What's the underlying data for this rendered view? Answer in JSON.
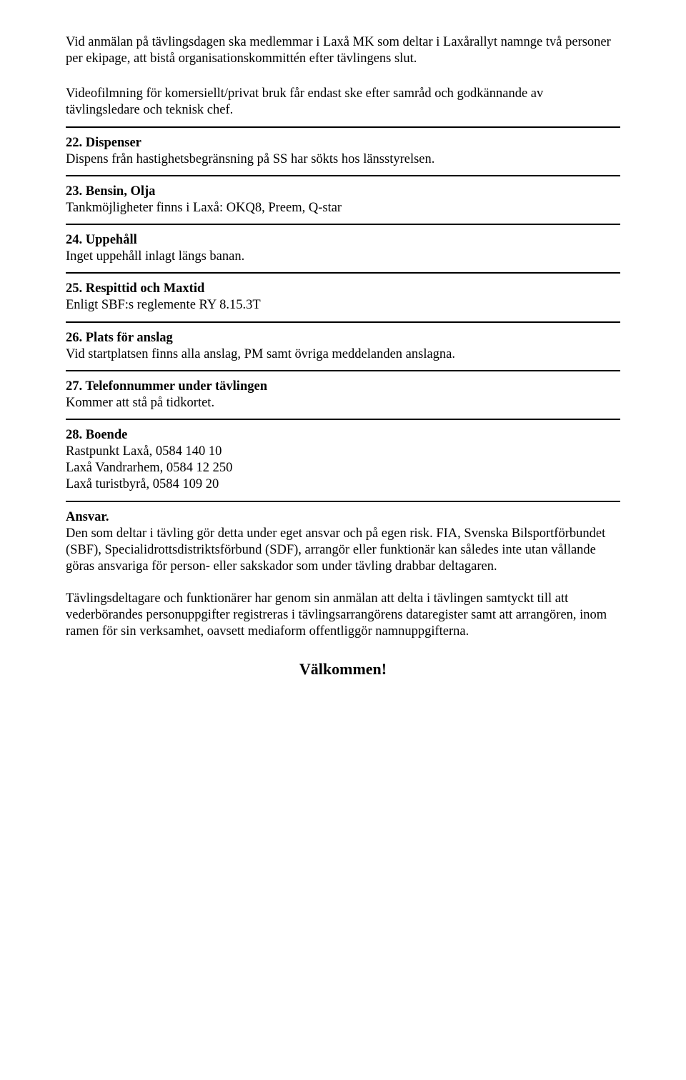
{
  "intro": {
    "p1": "Vid anmälan på tävlingsdagen ska medlemmar i Laxå MK som deltar i Laxårallyt namnge två personer per ekipage, att bistå organisationskommittén efter tävlingens slut.",
    "p2": "Videofilmning för komersiellt/privat bruk får endast ske efter samråd och godkännande av tävlingsledare och teknisk chef."
  },
  "s22": {
    "title": "22. Dispenser",
    "body": "Dispens från hastighetsbegränsning på SS har sökts hos länsstyrelsen."
  },
  "s23": {
    "title": "23. Bensin, Olja",
    "body": "Tankmöjligheter finns i Laxå: OKQ8, Preem, Q-star"
  },
  "s24": {
    "title": "24. Uppehåll",
    "body": "Inget uppehåll inlagt längs banan."
  },
  "s25": {
    "title": "25. Respittid och Maxtid",
    "body": "Enligt SBF:s reglemente RY 8.15.3T"
  },
  "s26": {
    "title": "26. Plats för anslag",
    "body": "Vid startplatsen finns alla anslag, PM samt övriga meddelanden anslagna."
  },
  "s27": {
    "title": "27. Telefonnummer under tävlingen",
    "body": "Kommer att stå på tidkortet."
  },
  "s28": {
    "title": "28. Boende",
    "l1": "Rastpunkt Laxå, 0584 140 10",
    "l2": "Laxå Vandrarhem, 0584 12 250",
    "l3": "Laxå turistbyrå, 0584 109 20"
  },
  "ansvar": {
    "title": "Ansvar.",
    "p1": "Den som deltar i tävling gör detta under eget ansvar och på egen risk. FIA, Svenska Bilsportförbundet (SBF), Specialidrottsdistriktsförbund (SDF), arrangör eller funktionär kan således inte utan vållande göras ansvariga för person- eller sakskador som under tävling drabbar deltagaren.",
    "p2": "Tävlingsdeltagare och funktionärer har genom sin anmälan att delta i tävlingen samtyckt till att vederbörandes personuppgifter registreras i tävlingsarrangörens dataregister samt att arrangören, inom ramen för sin verksamhet, oavsett mediaform offentliggör namnuppgifterna."
  },
  "welcome": "Välkommen!"
}
